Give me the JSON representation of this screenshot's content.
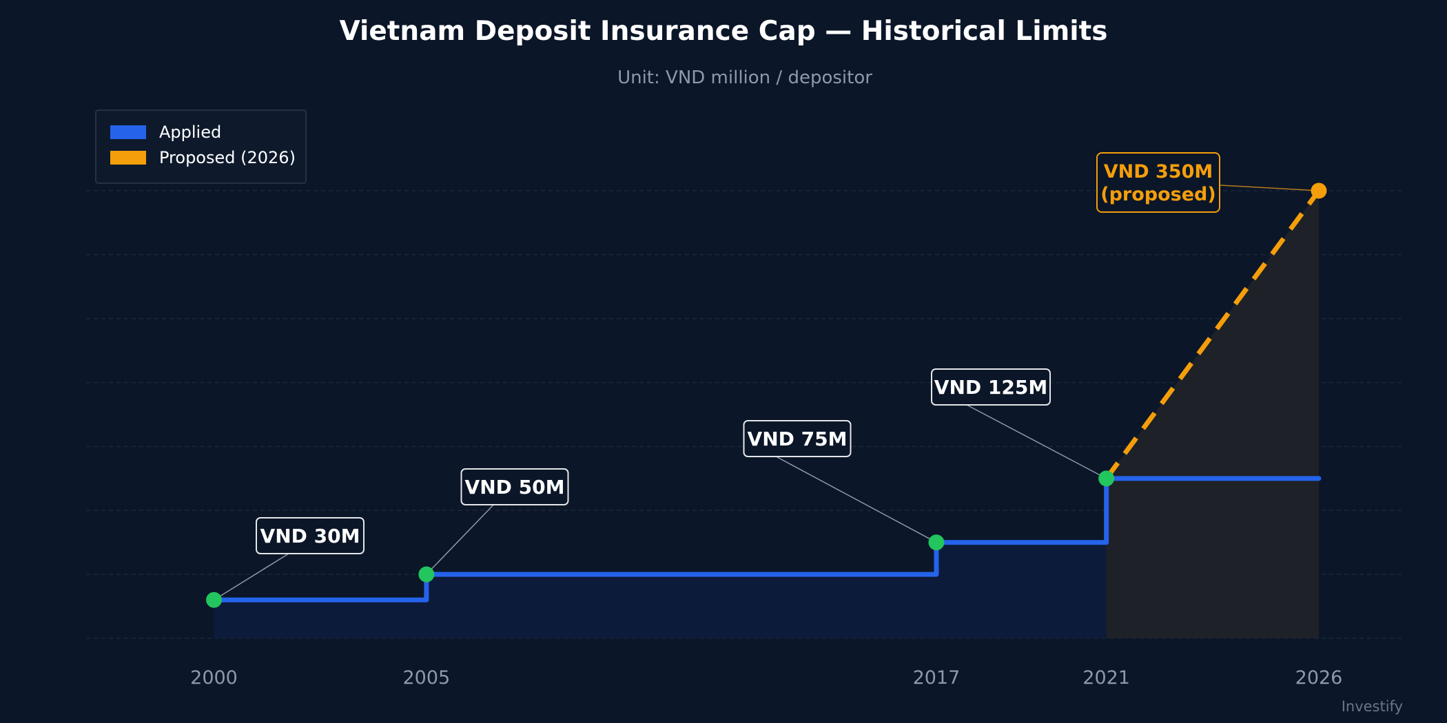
{
  "chart_data": {
    "type": "line",
    "title": "Vietnam Deposit Insurance Cap — Historical Limits",
    "subtitle": "Unit: VND million / depositor",
    "x_ticks": [
      "2000",
      "2005",
      "2017",
      "2021",
      "2026"
    ],
    "xlim": [
      1997,
      2027
    ],
    "ylim": [
      0,
      350
    ],
    "grid": true,
    "legend": {
      "placement": "top-left",
      "entries": [
        {
          "label": "Applied",
          "color": "#2563eb"
        },
        {
          "label": "Proposed (2026)",
          "color": "#f59e0b"
        }
      ]
    },
    "series": [
      {
        "name": "Applied",
        "style": "step",
        "color": "#2563eb",
        "x": [
          2000,
          2005,
          2017,
          2021,
          2026
        ],
        "y": [
          30,
          50,
          75,
          125,
          125
        ]
      },
      {
        "name": "Proposed (2026)",
        "style": "dashed",
        "color": "#f59e0b",
        "x": [
          2021,
          2026
        ],
        "y": [
          125,
          350
        ]
      }
    ],
    "points": [
      {
        "x": 2000,
        "y": 30,
        "label": "VND 30M"
      },
      {
        "x": 2005,
        "y": 50,
        "label": "VND 50M"
      },
      {
        "x": 2017,
        "y": 75,
        "label": "VND 75M"
      },
      {
        "x": 2021,
        "y": 125,
        "label": "VND 125M"
      }
    ],
    "proposed_point": {
      "x": 2026,
      "y": 350,
      "label_line1": "VND 350M",
      "label_line2": "(proposed)"
    },
    "colors": {
      "background": "#0b1628",
      "applied": "#2563eb",
      "proposed": "#f59e0b",
      "marker": "#22c55e",
      "applied_fill": "#0d1b3a",
      "proposed_fill": "#1e2127",
      "grid": "#1f2d40"
    }
  },
  "watermark": "Investify"
}
